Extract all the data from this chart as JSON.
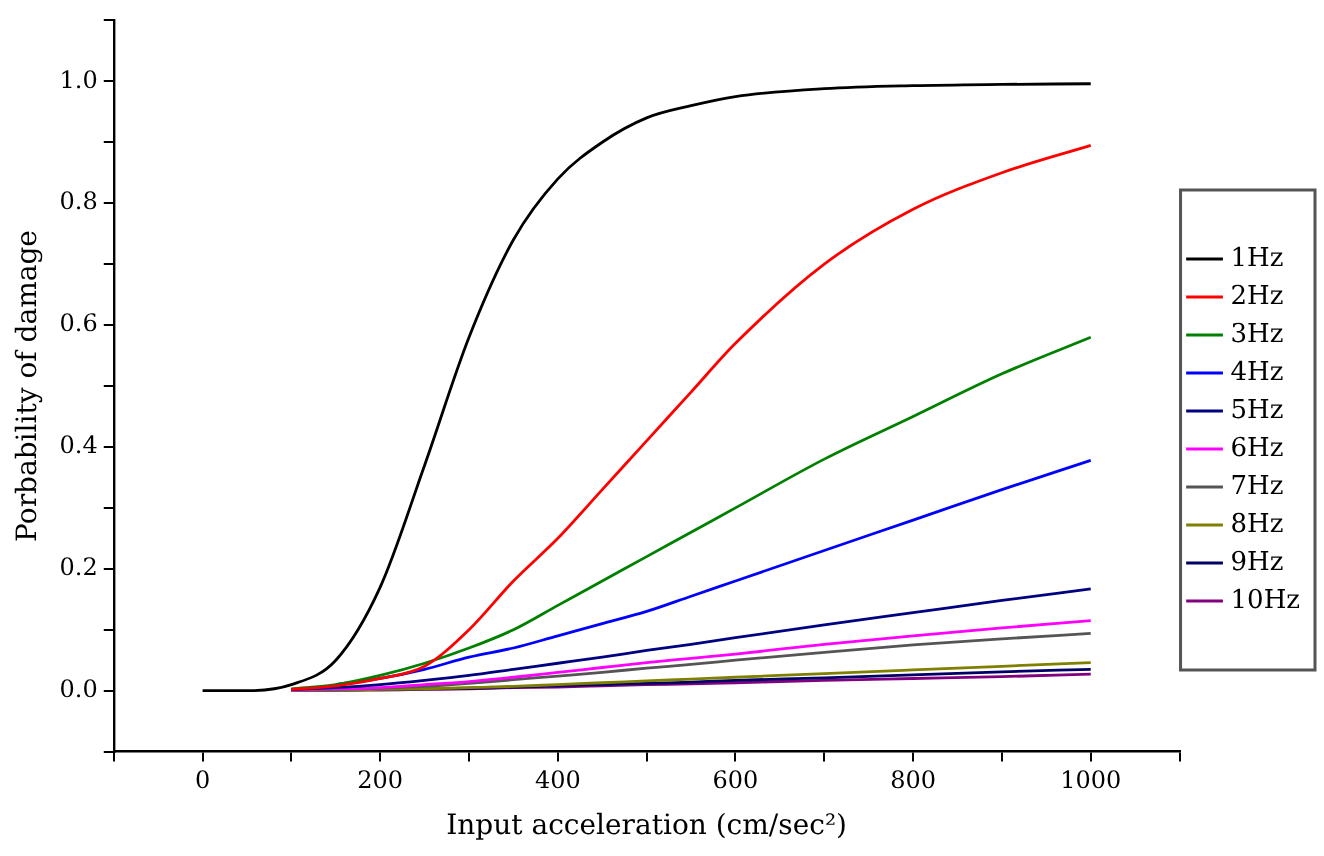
{
  "chart_data": {
    "type": "line",
    "xlabel": "Input acceleration (cm/sec²)",
    "ylabel": "Porbability of damage",
    "x": [
      0,
      50,
      100,
      150,
      200,
      250,
      300,
      350,
      400,
      450,
      500,
      550,
      600,
      700,
      800,
      900,
      1000
    ],
    "series": [
      {
        "name": "1Hz",
        "color": "#000000",
        "values": [
          0,
          0,
          0.01,
          0.05,
          0.17,
          0.37,
          0.58,
          0.74,
          0.84,
          0.9,
          0.94,
          0.96,
          0.975,
          0.988,
          0.993,
          0.995,
          0.996
        ]
      },
      {
        "name": "2Hz",
        "color": "#ff0000",
        "values": [
          null,
          null,
          0.002,
          0.008,
          0.02,
          0.04,
          0.1,
          0.18,
          0.25,
          0.33,
          0.41,
          0.49,
          0.57,
          0.7,
          0.79,
          0.85,
          0.895
        ]
      },
      {
        "name": "3Hz",
        "color": "#008000",
        "values": [
          null,
          null,
          0.003,
          0.01,
          0.025,
          0.045,
          0.07,
          0.1,
          0.14,
          0.18,
          0.22,
          0.26,
          0.3,
          0.38,
          0.45,
          0.52,
          0.58
        ]
      },
      {
        "name": "4Hz",
        "color": "#0000ff",
        "values": [
          null,
          null,
          null,
          0.01,
          0.02,
          0.035,
          0.055,
          0.07,
          0.09,
          0.11,
          0.13,
          0.155,
          0.18,
          0.23,
          0.28,
          0.33,
          0.378
        ]
      },
      {
        "name": "5Hz",
        "color": "#000080",
        "values": [
          null,
          null,
          0.002,
          0.005,
          0.01,
          0.017,
          0.025,
          0.035,
          0.045,
          0.055,
          0.066,
          0.076,
          0.087,
          0.108,
          0.128,
          0.148,
          0.167
        ]
      },
      {
        "name": "6Hz",
        "color": "#ff00ff",
        "values": [
          null,
          null,
          0.001,
          0.003,
          0.005,
          0.01,
          0.015,
          0.022,
          0.03,
          0.038,
          0.046,
          0.053,
          0.06,
          0.076,
          0.09,
          0.103,
          0.115
        ]
      },
      {
        "name": "7Hz",
        "color": "#555555",
        "values": [
          null,
          null,
          0.001,
          0.002,
          0.004,
          0.007,
          0.012,
          0.018,
          0.024,
          0.03,
          0.037,
          0.043,
          0.05,
          0.063,
          0.075,
          0.085,
          0.094
        ]
      },
      {
        "name": "8Hz",
        "color": "#808000",
        "values": [
          null,
          null,
          0,
          0.001,
          0.002,
          0.003,
          0.005,
          0.007,
          0.01,
          0.013,
          0.016,
          0.019,
          0.022,
          0.028,
          0.034,
          0.04,
          0.046
        ]
      },
      {
        "name": "9Hz",
        "color": "#000066",
        "values": [
          null,
          null,
          0,
          0.001,
          0.002,
          0.003,
          0.004,
          0.006,
          0.008,
          0.01,
          0.012,
          0.014,
          0.017,
          0.021,
          0.026,
          0.031,
          0.035
        ]
      },
      {
        "name": "10Hz",
        "color": "#800080",
        "values": [
          null,
          null,
          0,
          0.001,
          0.001,
          0.002,
          0.003,
          0.005,
          0.006,
          0.008,
          0.01,
          0.011,
          0.013,
          0.017,
          0.02,
          0.023,
          0.027
        ]
      }
    ],
    "xlim": [
      -100,
      1100
    ],
    "xticks": [
      {
        "value": -100,
        "label": null
      },
      0,
      {
        "value": 100,
        "label": null
      },
      200,
      {
        "value": 300,
        "label": null
      },
      400,
      {
        "value": 500,
        "label": null
      },
      600,
      {
        "value": 700,
        "label": null
      },
      800,
      {
        "value": 900,
        "label": null
      },
      1000,
      {
        "value": 1100,
        "label": null
      }
    ],
    "ylim": [
      -0.1,
      1.1
    ],
    "yticks": [
      {
        "value": -0.1,
        "label": null
      },
      {
        "value": 0,
        "label": "0.0"
      },
      {
        "value": 0.1,
        "label": null
      },
      {
        "value": 0.2,
        "label": "0.2"
      },
      {
        "value": 0.3,
        "label": null
      },
      {
        "value": 0.4,
        "label": "0.4"
      },
      {
        "value": 0.5,
        "label": null
      },
      {
        "value": 0.6,
        "label": "0.6"
      },
      {
        "value": 0.7,
        "label": null
      },
      {
        "value": 0.8,
        "label": "0.8"
      },
      {
        "value": 0.9,
        "label": null
      },
      {
        "value": 1,
        "label": "1.0"
      },
      {
        "value": 1.1,
        "label": null
      }
    ],
    "grid": false,
    "legend": "right",
    "marker": "none",
    "line_style": "solid"
  }
}
